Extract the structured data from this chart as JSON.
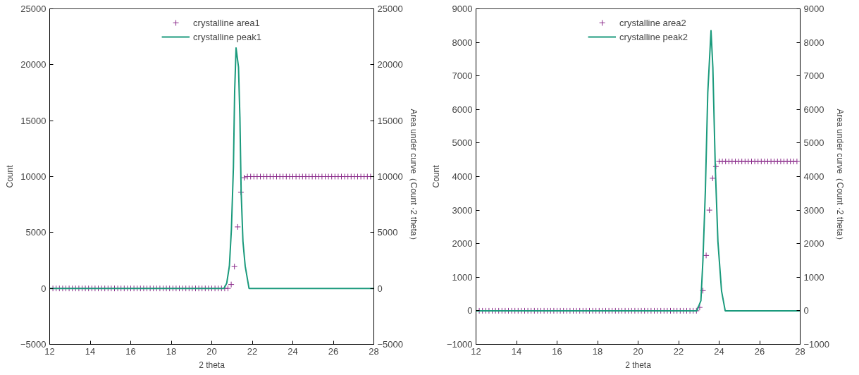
{
  "chart_data": [
    {
      "type": "line",
      "xlabel": "2 theta",
      "ylabel": "Count",
      "y2label": "Area under curve（Count ·2 theta）",
      "xlim": [
        12,
        28
      ],
      "xticks": [
        12,
        14,
        16,
        18,
        20,
        22,
        24,
        26,
        28
      ],
      "ylim": [
        -5000,
        25000
      ],
      "yticks": [
        -5000,
        0,
        5000,
        10000,
        15000,
        20000,
        25000
      ],
      "y2lim": [
        -5000,
        25000
      ],
      "y2ticks": [
        -5000,
        0,
        5000,
        10000,
        15000,
        20000,
        25000
      ],
      "grid": false,
      "legend": "top",
      "series": [
        {
          "name": "crystalline area1",
          "type": "scatter",
          "marker": "cross",
          "color": "#8b2c8b",
          "x": [
            12.16,
            12.32,
            12.48,
            12.64,
            12.8,
            12.96,
            13.12,
            13.28,
            13.44,
            13.6,
            13.76,
            13.92,
            14.08,
            14.24,
            14.4,
            14.56,
            14.72,
            14.88,
            15.04,
            15.2,
            15.36,
            15.52,
            15.68,
            15.84,
            16,
            16.16,
            16.32,
            16.48,
            16.64,
            16.8,
            16.96,
            17.12,
            17.28,
            17.44,
            17.6,
            17.76,
            17.92,
            18.08,
            18.24,
            18.4,
            18.56,
            18.72,
            18.88,
            19.04,
            19.2,
            19.36,
            19.52,
            19.68,
            19.84,
            20,
            20.16,
            20.32,
            20.48,
            20.64,
            20.8,
            20.96,
            21.12,
            21.28,
            21.44,
            21.6,
            21.76,
            21.92,
            22.08,
            22.24,
            22.4,
            22.56,
            22.72,
            22.88,
            23.04,
            23.2,
            23.36,
            23.52,
            23.68,
            23.84,
            24,
            24.16,
            24.32,
            24.48,
            24.64,
            24.8,
            24.96,
            25.12,
            25.28,
            25.44,
            25.6,
            25.76,
            25.92,
            26.08,
            26.24,
            26.4,
            26.56,
            26.72,
            26.88,
            27.04,
            27.2,
            27.36,
            27.52,
            27.68,
            27.84
          ],
          "values": [
            0,
            0,
            0,
            0,
            0,
            0,
            0,
            0,
            0,
            0,
            0,
            0,
            0,
            0,
            0,
            0,
            0,
            0,
            0,
            0,
            0,
            0,
            0,
            0,
            0,
            0,
            0,
            0,
            0,
            0,
            0,
            0,
            0,
            0,
            0,
            0,
            0,
            0,
            0,
            0,
            0,
            0,
            0,
            0,
            0,
            0,
            0,
            0,
            0,
            0,
            0,
            0,
            0,
            0,
            0,
            350,
            1950,
            5500,
            8600,
            9900,
            10000,
            10000,
            10000,
            10000,
            10000,
            10000,
            10000,
            10000,
            10000,
            10000,
            10000,
            10000,
            10000,
            10000,
            10000,
            10000,
            10000,
            10000,
            10000,
            10000,
            10000,
            10000,
            10000,
            10000,
            10000,
            10000,
            10000,
            10000,
            10000,
            10000,
            10000,
            10000,
            10000,
            10000,
            10000,
            10000,
            10000,
            10000,
            10000
          ]
        },
        {
          "name": "crystalline peak1",
          "line_style": "solid",
          "color": "#1a9a7c",
          "x": [
            12,
            20.6,
            20.74,
            20.87,
            20.97,
            21.07,
            21.13,
            21.2,
            21.27,
            21.32,
            21.39,
            21.45,
            21.54,
            21.65,
            21.84,
            28
          ],
          "values": [
            0,
            0,
            470,
            2000,
            5300,
            10900,
            17600,
            21500,
            20500,
            19800,
            15300,
            8700,
            4200,
            2000,
            0,
            0
          ]
        }
      ]
    },
    {
      "type": "line",
      "xlabel": "2 theta",
      "ylabel": "Count",
      "y2label": "Area under curve（Count ·2 theta）",
      "xlim": [
        12,
        28
      ],
      "xticks": [
        12,
        14,
        16,
        18,
        20,
        22,
        24,
        26,
        28
      ],
      "ylim": [
        -1000,
        9000
      ],
      "yticks": [
        -1000,
        0,
        1000,
        2000,
        3000,
        4000,
        5000,
        6000,
        7000,
        8000,
        9000
      ],
      "y2lim": [
        -1000,
        9000
      ],
      "y2ticks": [
        -1000,
        0,
        1000,
        2000,
        3000,
        4000,
        5000,
        6000,
        7000,
        8000,
        9000
      ],
      "grid": false,
      "legend": "top",
      "series": [
        {
          "name": "crystalline area2",
          "type": "scatter",
          "marker": "cross",
          "color": "#8b2c8b",
          "x": [
            12.16,
            12.32,
            12.48,
            12.64,
            12.8,
            12.96,
            13.12,
            13.28,
            13.44,
            13.6,
            13.76,
            13.92,
            14.08,
            14.24,
            14.4,
            14.56,
            14.72,
            14.88,
            15.04,
            15.2,
            15.36,
            15.52,
            15.68,
            15.84,
            16,
            16.16,
            16.32,
            16.48,
            16.64,
            16.8,
            16.96,
            17.12,
            17.28,
            17.44,
            17.6,
            17.76,
            17.92,
            18.08,
            18.24,
            18.4,
            18.56,
            18.72,
            18.88,
            19.04,
            19.2,
            19.36,
            19.52,
            19.68,
            19.84,
            20,
            20.16,
            20.32,
            20.48,
            20.64,
            20.8,
            20.96,
            21.12,
            21.28,
            21.44,
            21.6,
            21.76,
            21.92,
            22.08,
            22.24,
            22.4,
            22.56,
            22.72,
            22.88,
            23.04,
            23.2,
            23.36,
            23.52,
            23.68,
            23.84,
            24,
            24.16,
            24.32,
            24.48,
            24.64,
            24.8,
            24.96,
            25.12,
            25.28,
            25.44,
            25.6,
            25.76,
            25.92,
            26.08,
            26.24,
            26.4,
            26.56,
            26.72,
            26.88,
            27.04,
            27.2,
            27.36,
            27.52,
            27.68,
            27.84
          ],
          "values": [
            0,
            0,
            0,
            0,
            0,
            0,
            0,
            0,
            0,
            0,
            0,
            0,
            0,
            0,
            0,
            0,
            0,
            0,
            0,
            0,
            0,
            0,
            0,
            0,
            0,
            0,
            0,
            0,
            0,
            0,
            0,
            0,
            0,
            0,
            0,
            0,
            0,
            0,
            0,
            0,
            0,
            0,
            0,
            0,
            0,
            0,
            0,
            0,
            0,
            0,
            0,
            0,
            0,
            0,
            0,
            0,
            0,
            0,
            0,
            0,
            0,
            0,
            0,
            0,
            0,
            0,
            0,
            0,
            100,
            600,
            1650,
            3000,
            3950,
            4300,
            4450,
            4450,
            4450,
            4450,
            4450,
            4450,
            4450,
            4450,
            4450,
            4450,
            4450,
            4450,
            4450,
            4450,
            4450,
            4450,
            4450,
            4450,
            4450,
            4450,
            4450,
            4450,
            4450,
            4450,
            4450
          ]
        },
        {
          "name": "crystalline peak2",
          "line_style": "solid",
          "color": "#1a9a7c",
          "x": [
            12,
            22.9,
            23.1,
            23.2,
            23.32,
            23.44,
            23.6,
            23.69,
            23.81,
            23.94,
            24.12,
            24.3,
            28
          ],
          "values": [
            0,
            0,
            300,
            1500,
            3560,
            6500,
            8350,
            7260,
            4300,
            2070,
            590,
            0,
            0
          ]
        }
      ]
    }
  ]
}
